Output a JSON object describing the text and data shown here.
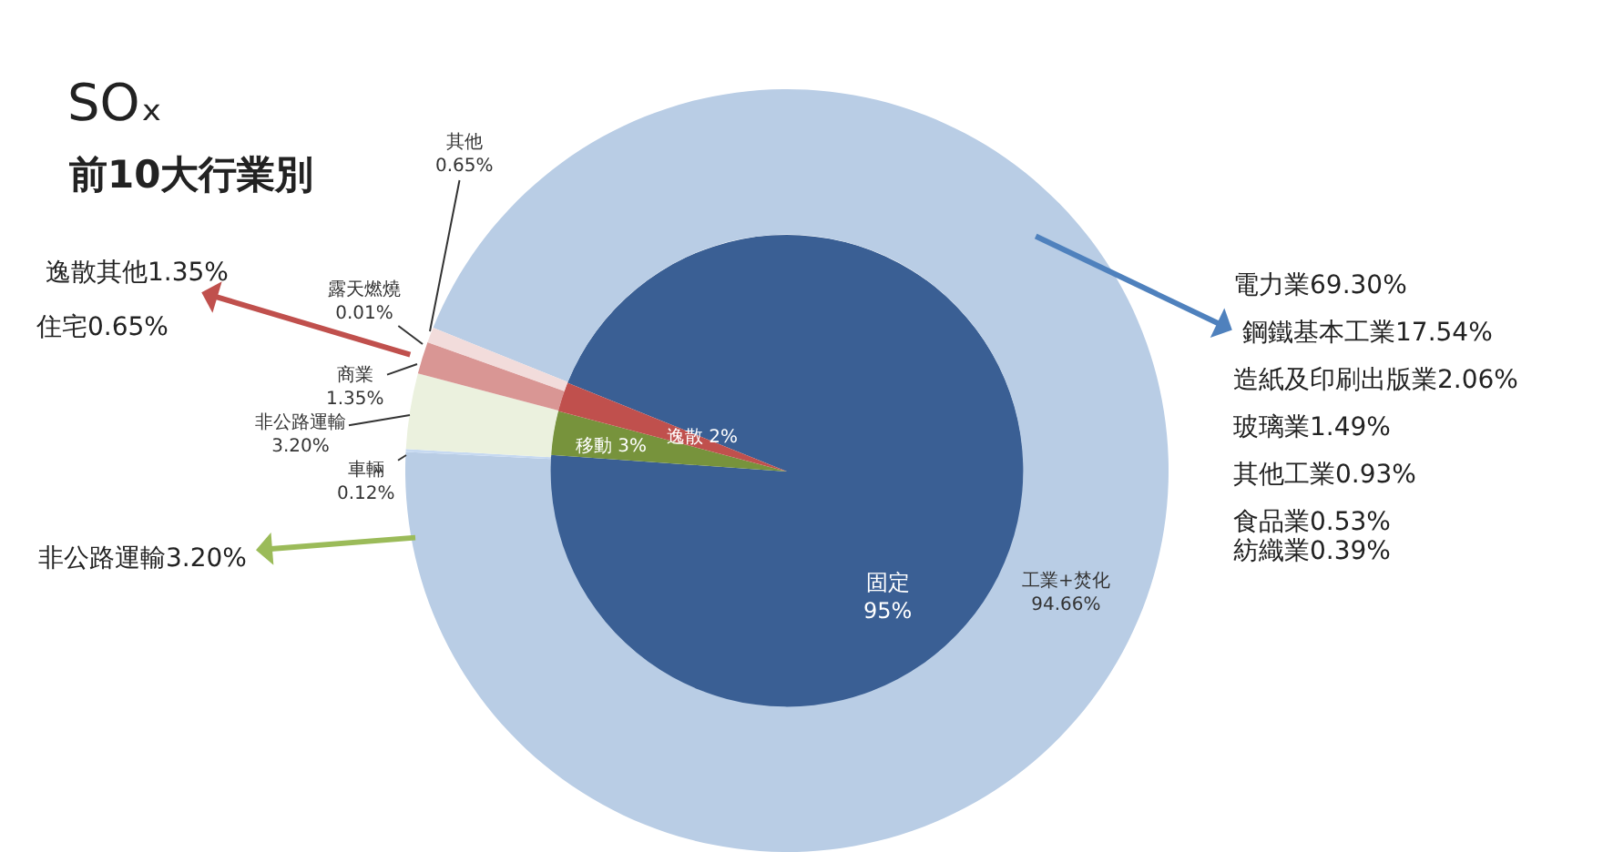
{
  "chart_data": [
    {
      "type": "pie",
      "title": "SOₓ",
      "subtitle": "前10大行業別",
      "categories": [
        "固定",
        "移動",
        "逸散"
      ],
      "values": [
        95,
        3,
        2
      ],
      "colors": [
        "#3a5f94",
        "#77933c",
        "#c0504d"
      ],
      "value_labels": [
        "95%",
        "3%",
        "2%"
      ]
    },
    {
      "type": "donut",
      "categories": [
        "工業+焚化",
        "車輛",
        "非公路運輸",
        "商業",
        "露天燃燒",
        "其他"
      ],
      "values": [
        94.66,
        0.12,
        3.2,
        1.35,
        0.01,
        0.65
      ],
      "colors": [
        "#b9cde5",
        "#c6d9f1",
        "#ebf1de",
        "#d99694",
        "#c0504d",
        "#f2dcdb"
      ],
      "value_labels": [
        "94.66%",
        "0.12%",
        "3.20%",
        "1.35%",
        "0.01%",
        "0.65%"
      ],
      "annotations": [
        "逸散其他1.35%",
        "住宅0.65%",
        "非公路運輸3.20%",
        "電力業69.30%",
        "鋼鐵基本工業17.54%",
        "造紙及印刷出版業2.06%",
        "玻璃業1.49%",
        "其他工業0.93%",
        "食品業0.53%",
        "紡織業0.39%"
      ]
    }
  ]
}
